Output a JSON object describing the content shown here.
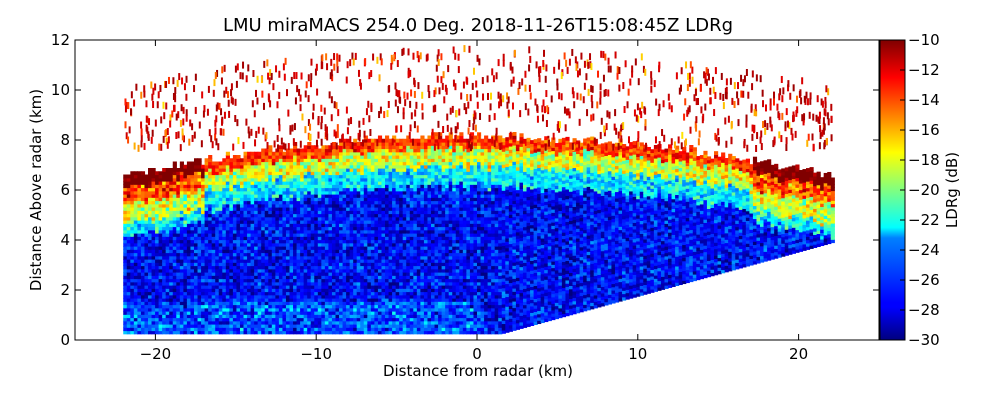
{
  "chart_data": {
    "type": "heatmap",
    "title": "LMU miraMACS 254.0 Deg. 2018-11-26T15:08:45Z  LDRg",
    "xlabel": "Distance from radar (km)",
    "ylabel": "Distance Above radar  (km)",
    "xlim": [
      -25,
      25
    ],
    "ylim": [
      0,
      12
    ],
    "x_ticks": [
      -20,
      -10,
      0,
      10,
      20
    ],
    "y_ticks": [
      0,
      2,
      4,
      6,
      8,
      10,
      12
    ],
    "colorbar": {
      "label": "LDRg (dB)",
      "range": [
        -30,
        -10
      ],
      "ticks": [
        -30,
        -28,
        -26,
        -24,
        -22,
        -20,
        -18,
        -16,
        -14,
        -12,
        -10
      ],
      "colormap": "jet"
    },
    "scan": {
      "left_edge_km": -22,
      "right_edge_km": 22,
      "right_edge_height_km": 3.9,
      "origin_km": [
        0,
        0
      ],
      "cloud_top_km": 8.1,
      "high_ldr_layer_km": [
        6.2,
        8.1
      ],
      "scatter_extent_km": [
        8.1,
        11.5
      ]
    }
  }
}
